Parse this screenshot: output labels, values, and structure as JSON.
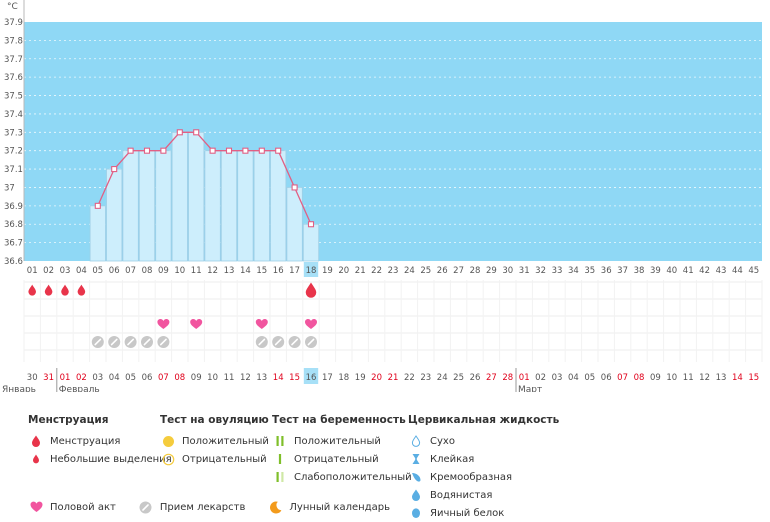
{
  "chart_data": {
    "type": "line",
    "ylabel": "°C",
    "ylim": [
      36.6,
      37.9
    ],
    "y_ticks": [
      "37.9",
      "37.8",
      "37.7",
      "37.6",
      "37.5",
      "37.4",
      "37.3",
      "37.2",
      "37.1",
      "37",
      "36.9",
      "36.8",
      "36.7",
      "36.6"
    ],
    "cycle_days": [
      "01",
      "02",
      "03",
      "04",
      "05",
      "06",
      "07",
      "08",
      "09",
      "10",
      "11",
      "12",
      "13",
      "14",
      "15",
      "16",
      "17",
      "18",
      "19",
      "20",
      "21",
      "22",
      "23",
      "24",
      "25",
      "26",
      "27",
      "28",
      "29",
      "30",
      "31",
      "32",
      "33",
      "34",
      "35",
      "36",
      "37",
      "38",
      "39",
      "40",
      "41",
      "42",
      "43",
      "44",
      "45"
    ],
    "temperatures": [
      null,
      null,
      null,
      null,
      36.9,
      37.1,
      37.2,
      37.2,
      37.2,
      37.3,
      37.3,
      37.2,
      37.2,
      37.2,
      37.2,
      37.2,
      37.0,
      36.8,
      null,
      null,
      null,
      null,
      null,
      null,
      null,
      null,
      null,
      null,
      null,
      null,
      null,
      null,
      null,
      null,
      null,
      null,
      null,
      null,
      null,
      null,
      null,
      null,
      null,
      null,
      null
    ],
    "current_day": "18",
    "dates": [
      "30",
      "31",
      "01",
      "02",
      "03",
      "04",
      "05",
      "06",
      "07",
      "08",
      "09",
      "10",
      "11",
      "12",
      "13",
      "14",
      "15",
      "16",
      "17",
      "18",
      "19",
      "20",
      "21",
      "22",
      "23",
      "24",
      "25",
      "26",
      "27",
      "28",
      "01",
      "02",
      "03",
      "04",
      "05",
      "06",
      "07",
      "08",
      "09",
      "10",
      "11",
      "12",
      "13",
      "14",
      "15"
    ],
    "weekend_dates_idx": [
      1,
      2,
      3,
      8,
      9,
      15,
      16,
      21,
      22,
      28,
      29,
      30,
      36,
      37,
      43,
      44
    ],
    "month_labels": [
      {
        "text": "Январь",
        "start_idx": 0
      },
      {
        "text": "Февраль",
        "start_idx": 2
      },
      {
        "text": "Март",
        "start_idx": 30
      }
    ],
    "menstruation_days": [
      0,
      1,
      2,
      3,
      17
    ],
    "menstruation_current_idx": 17,
    "intercourse_days": [
      8,
      10,
      14,
      17
    ],
    "medication_days": [
      4,
      5,
      6,
      7,
      8,
      14,
      15,
      16,
      17
    ]
  },
  "legend": {
    "menstruation": {
      "title": "Менструация",
      "items": [
        "Менструация",
        "Небольшие выделения"
      ]
    },
    "ovulation_test": {
      "title": "Тест на овуляцию",
      "items": [
        "Положительный",
        "Отрицательный"
      ]
    },
    "pregnancy_test": {
      "title": "Тест на беременность",
      "items": [
        "Положительный",
        "Отрицательный",
        "Слабоположительный"
      ]
    },
    "cervical_fluid": {
      "title": "Цервикальная жидкость",
      "items": [
        "Сухо",
        "Клейкая",
        "Кремообразная",
        "Водянистая",
        "Яичный белок"
      ]
    },
    "bottom": [
      "Половой акт",
      "Прием лекарств",
      "Лунный календарь"
    ]
  },
  "colors": {
    "chart_bg": "#8fd8f5",
    "bar_fill": "#cdeefc",
    "bar_stroke": "#9ecfe6",
    "line": "#e25f84",
    "drop": "#e8344a",
    "heart": "#f1559f",
    "pill": "#c8c8c8",
    "weekend": "#e0001b",
    "highlight": "#a7e0f7",
    "ovulation_yellow": "#f5cc3d",
    "pregnancy_green": "#7fbf2a",
    "fluid_blue": "#5aaee3",
    "moon": "#f39b1c"
  }
}
